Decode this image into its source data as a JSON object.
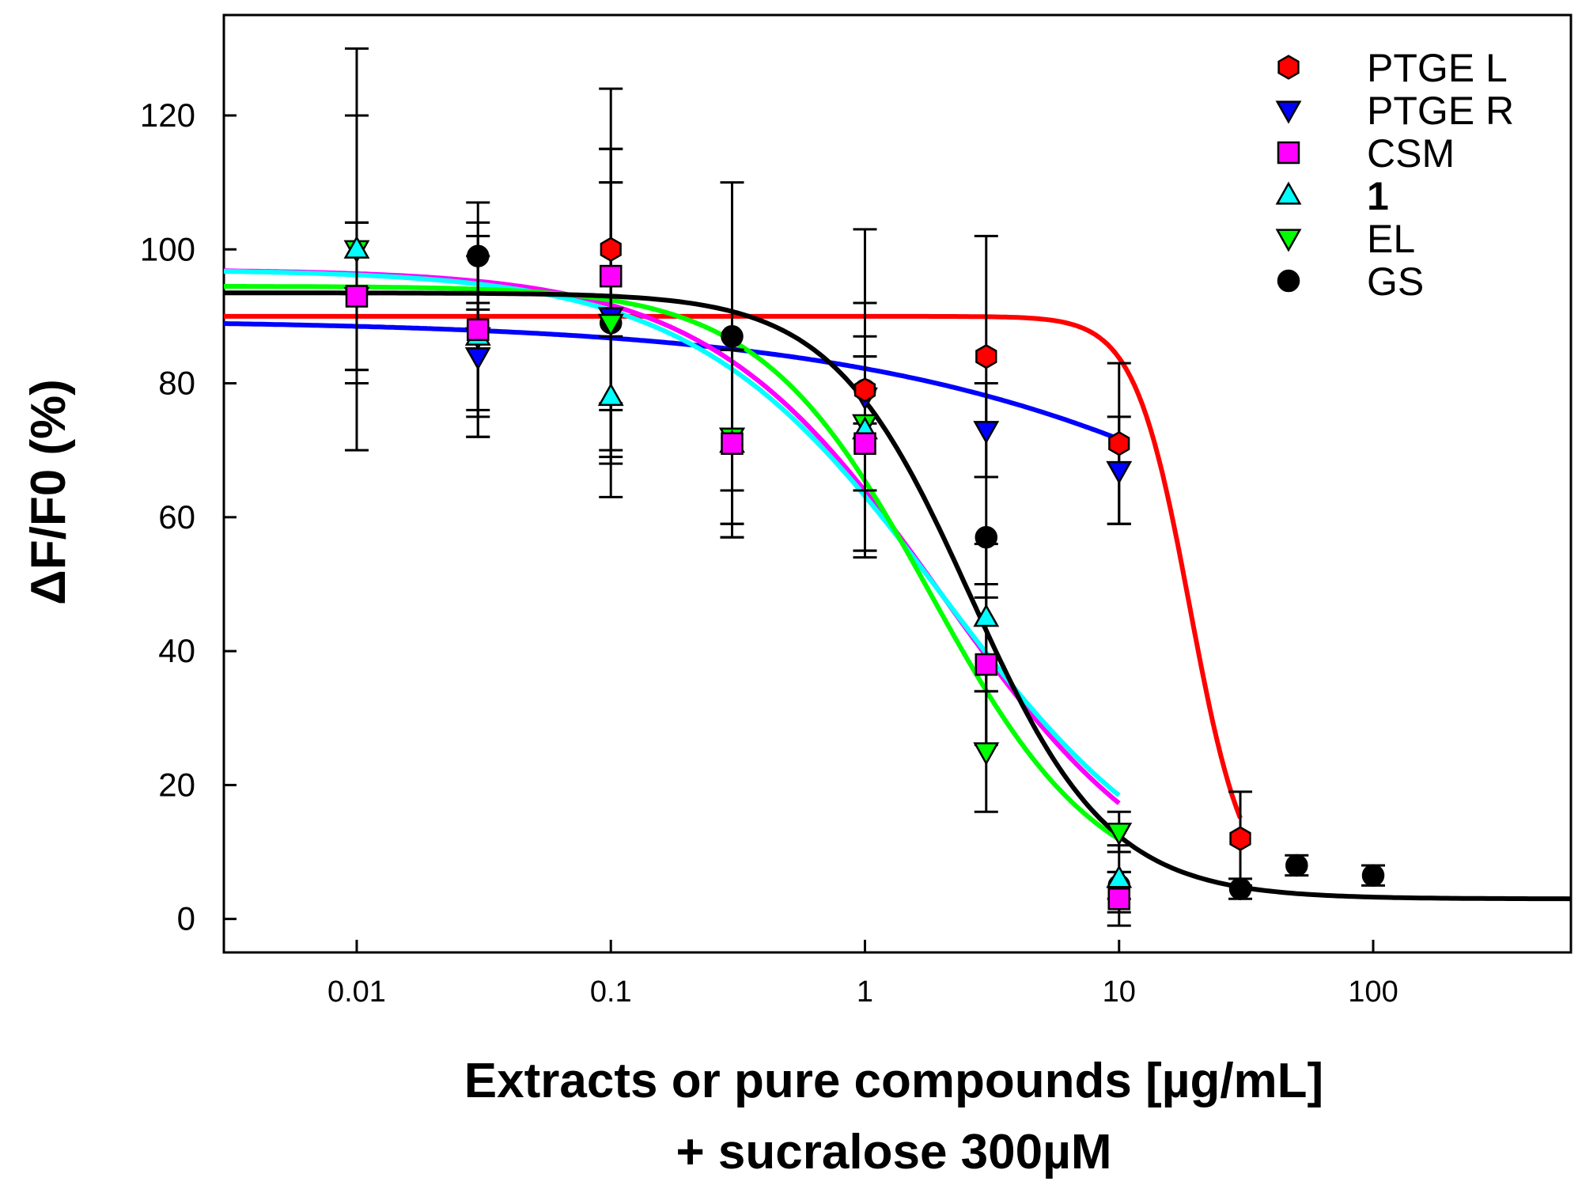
{
  "chart_data": {
    "type": "scatter",
    "title": "",
    "xlabel_lines": [
      "Extracts or pure compounds [µg/mL]",
      "+ sucralose 300µM"
    ],
    "ylabel": "ΔF/F0 (%)",
    "xscale": "log",
    "xlim": [
      0.003,
      600
    ],
    "ylim": [
      -5,
      135
    ],
    "x_ticks": [
      0.01,
      0.1,
      1,
      10,
      100
    ],
    "x_tick_labels": [
      "0.01",
      "0.1",
      "1",
      "10",
      "100"
    ],
    "y_ticks": [
      0,
      20,
      40,
      60,
      80,
      100,
      120
    ],
    "y_tick_labels": [
      "0",
      "20",
      "40",
      "60",
      "80",
      "100",
      "120"
    ],
    "grid": false,
    "legend_position": "top-right",
    "series": [
      {
        "name": "PTGE L",
        "marker": "hexagon",
        "color": "#ff0000",
        "curve_color": "#ff0000",
        "curve": {
          "top": 90,
          "bottom": 3,
          "ec50": 19,
          "hill": 4.0,
          "x_end": 30
        },
        "points": [
          {
            "x": 0.1,
            "y": 100,
            "err": 24
          },
          {
            "x": 1,
            "y": 79,
            "err": 24
          },
          {
            "x": 3,
            "y": 84,
            "err": 18
          },
          {
            "x": 10,
            "y": 71,
            "err": 12
          },
          {
            "x": 30,
            "y": 12,
            "err": 7
          }
        ]
      },
      {
        "name": "PTGE R",
        "marker": "triangle-down",
        "color": "#0000ff",
        "curve_color": "#0000ff",
        "curve": {
          "top": 89.5,
          "bottom": 3,
          "ec50": 200,
          "hill": 0.45,
          "x_end": 10
        },
        "points": [
          {
            "x": 0.01,
            "y": 93,
            "err": 11
          },
          {
            "x": 0.03,
            "y": 84,
            "err": 8
          },
          {
            "x": 0.1,
            "y": 90,
            "err": 20
          },
          {
            "x": 0.3,
            "y": 72,
            "err": 13
          },
          {
            "x": 1,
            "y": 78,
            "err": 14
          },
          {
            "x": 3,
            "y": 73,
            "err": 7
          },
          {
            "x": 10,
            "y": 67,
            "err": 8
          }
        ]
      },
      {
        "name": "CSM",
        "marker": "square",
        "color": "#ff00ff",
        "curve_color": "#ff00ff",
        "curve": {
          "top": 97,
          "bottom": 0,
          "ec50": 2.0,
          "hill": 0.95,
          "x_end": 10
        },
        "points": [
          {
            "x": 0.01,
            "y": 93,
            "err": 11
          },
          {
            "x": 0.03,
            "y": 88,
            "err": 16
          },
          {
            "x": 0.1,
            "y": 96,
            "err": 19
          },
          {
            "x": 0.3,
            "y": 71,
            "err": 14
          },
          {
            "x": 1,
            "y": 71,
            "err": 16
          },
          {
            "x": 3,
            "y": 38,
            "err": 12
          },
          {
            "x": 10,
            "y": 3,
            "err": 4
          }
        ]
      },
      {
        "name": "1",
        "bold": true,
        "marker": "triangle-up",
        "color": "#00ffff",
        "curve_color": "#00ffff",
        "curve": {
          "top": 97,
          "bottom": 0,
          "ec50": 2.0,
          "hill": 0.9,
          "x_end": 10
        },
        "points": [
          {
            "x": 0.01,
            "y": 100,
            "err": 30
          },
          {
            "x": 0.03,
            "y": 87,
            "err": 15
          },
          {
            "x": 0.1,
            "y": 78,
            "err": 9
          },
          {
            "x": 0.3,
            "y": 71,
            "err": 14
          },
          {
            "x": 1,
            "y": 73,
            "err": 19
          },
          {
            "x": 3,
            "y": 45,
            "err": 11
          },
          {
            "x": 10,
            "y": 6,
            "err": 5
          }
        ]
      },
      {
        "name": "EL",
        "marker": "triangle-down",
        "color": "#00ff00",
        "curve_color": "#00ff00",
        "curve": {
          "top": 94.5,
          "bottom": 3,
          "ec50": 1.8,
          "hill": 1.3,
          "x_end": 10
        },
        "points": [
          {
            "x": 0.01,
            "y": 100,
            "err": 20
          },
          {
            "x": 0.03,
            "y": 87,
            "err": 12
          },
          {
            "x": 0.1,
            "y": 89,
            "err": 21
          },
          {
            "x": 0.3,
            "y": 72,
            "err": 13
          },
          {
            "x": 1,
            "y": 74,
            "err": 10
          },
          {
            "x": 3,
            "y": 25,
            "err": 9
          },
          {
            "x": 10,
            "y": 13,
            "err": 3
          }
        ]
      },
      {
        "name": "GS",
        "marker": "circle",
        "color": "#000000",
        "curve_color": "#000000",
        "curve": {
          "top": 93.5,
          "bottom": 3,
          "ec50": 2.6,
          "hill": 1.6,
          "x_end": 600
        },
        "points": [
          {
            "x": 0.03,
            "y": 99,
            "err": 8
          },
          {
            "x": 0.1,
            "y": 89,
            "err": 26
          },
          {
            "x": 0.3,
            "y": 87,
            "err": 23
          },
          {
            "x": 1,
            "y": 79,
            "err": 5
          },
          {
            "x": 3,
            "y": 57,
            "err": 9
          },
          {
            "x": 10,
            "y": 5,
            "err": 2
          },
          {
            "x": 30,
            "y": 4.5,
            "err": 1.5
          },
          {
            "x": 50,
            "y": 8,
            "err": 1.5
          },
          {
            "x": 100,
            "y": 6.5,
            "err": 1.5
          }
        ]
      }
    ]
  }
}
